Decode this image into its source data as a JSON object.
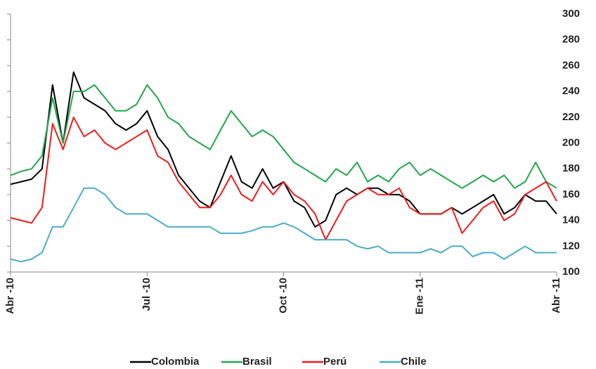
{
  "chart_data": {
    "type": "line",
    "categories": [
      "Abr -10",
      null,
      null,
      null,
      null,
      null,
      null,
      null,
      null,
      null,
      null,
      null,
      null,
      "Jul -10",
      null,
      null,
      null,
      null,
      null,
      null,
      null,
      null,
      null,
      null,
      null,
      null,
      "Oct -10",
      null,
      null,
      null,
      null,
      null,
      null,
      null,
      null,
      null,
      null,
      null,
      null,
      "Ene -11",
      null,
      null,
      null,
      null,
      null,
      null,
      null,
      null,
      null,
      null,
      null,
      null,
      "Abr -11"
    ],
    "ylim": [
      100,
      300
    ],
    "yticks": [
      100,
      120,
      140,
      160,
      180,
      200,
      220,
      240,
      260,
      280,
      300
    ],
    "y_axis_side": "right",
    "grid": false,
    "legend": "bottom",
    "series": [
      {
        "name": "Colombia",
        "color": "#000000",
        "values": [
          168,
          170,
          172,
          180,
          245,
          200,
          255,
          235,
          230,
          225,
          215,
          210,
          215,
          225,
          205,
          195,
          175,
          165,
          155,
          150,
          170,
          190,
          170,
          165,
          180,
          165,
          170,
          155,
          150,
          135,
          140,
          160,
          165,
          160,
          165,
          165,
          160,
          160,
          155,
          145,
          145,
          145,
          150,
          145,
          150,
          155,
          160,
          145,
          150,
          160,
          155,
          155,
          145
        ]
      },
      {
        "name": "Brasil",
        "color": "#22a64a",
        "values": [
          175,
          178,
          180,
          190,
          235,
          200,
          240,
          240,
          245,
          235,
          225,
          225,
          230,
          245,
          235,
          220,
          215,
          205,
          200,
          195,
          210,
          225,
          215,
          205,
          210,
          205,
          195,
          185,
          180,
          175,
          170,
          180,
          175,
          185,
          170,
          175,
          170,
          180,
          185,
          175,
          180,
          175,
          170,
          165,
          170,
          175,
          170,
          175,
          165,
          170,
          185,
          170,
          165
        ]
      },
      {
        "name": "Perú",
        "color": "#ee1c1c",
        "values": [
          142,
          140,
          138,
          150,
          215,
          195,
          220,
          205,
          210,
          200,
          195,
          200,
          205,
          210,
          190,
          185,
          170,
          160,
          150,
          150,
          160,
          175,
          160,
          155,
          170,
          160,
          170,
          160,
          155,
          145,
          125,
          140,
          155,
          160,
          165,
          160,
          160,
          165,
          150,
          145,
          145,
          145,
          150,
          130,
          140,
          150,
          155,
          140,
          145,
          160,
          165,
          170,
          155
        ]
      },
      {
        "name": "Chile",
        "color": "#4bacc6",
        "values": [
          110,
          108,
          110,
          115,
          135,
          135,
          150,
          165,
          165,
          160,
          150,
          145,
          145,
          145,
          140,
          135,
          135,
          135,
          135,
          135,
          130,
          130,
          130,
          132,
          135,
          135,
          138,
          135,
          130,
          125,
          125,
          125,
          125,
          120,
          118,
          120,
          115,
          115,
          115,
          115,
          118,
          115,
          120,
          120,
          112,
          115,
          115,
          110,
          115,
          120,
          115,
          115,
          115
        ]
      }
    ]
  }
}
